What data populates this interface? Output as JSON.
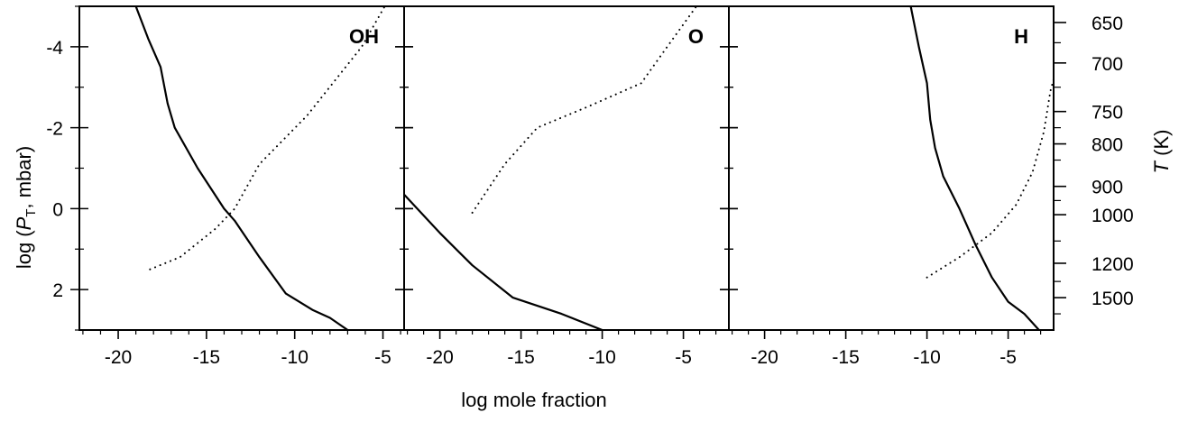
{
  "chart_data": {
    "type": "line",
    "xlabel": "log mole fraction",
    "ylabel": {
      "prefix": "log (",
      "var": "P",
      "sub": "T",
      "suffix": ", mbar)"
    },
    "right_axis_label": {
      "var": "T",
      "suffix": " (K)"
    },
    "ylim": [
      3,
      -5
    ],
    "y_ticks": [
      -4,
      -2,
      0,
      2
    ],
    "y_tick_labels": [
      "-4",
      "-2",
      "0",
      "2"
    ],
    "right_ticks": [
      {
        "p": -4.6,
        "label": "650"
      },
      {
        "p": -3.6,
        "label": "700"
      },
      {
        "p": -2.4,
        "label": "750"
      },
      {
        "p": -1.6,
        "label": "800"
      },
      {
        "p": -0.55,
        "label": "900"
      },
      {
        "p": 0.15,
        "label": "1000"
      },
      {
        "p": 1.35,
        "label": "1200"
      },
      {
        "p": 2.2,
        "label": "1500"
      }
    ],
    "right_minor_ticks": [
      -4.1,
      -3.0,
      -2.0,
      -1.2,
      -0.2,
      0.8,
      1.8,
      2.6
    ],
    "panels": [
      {
        "label": "OH",
        "xlim": [
          -22.2,
          -3.8
        ],
        "x_ticks": [
          -20,
          -15,
          -10,
          -5
        ],
        "x_tick_labels": [
          "-20",
          "-15",
          "-10",
          "-5"
        ],
        "series": [
          {
            "style": "solid",
            "points": [
              [
                -19,
                -5
              ],
              [
                -18.3,
                -4.2
              ],
              [
                -17.6,
                -3.5
              ],
              [
                -17.2,
                -2.6
              ],
              [
                -16.8,
                -2
              ],
              [
                -15.5,
                -1
              ],
              [
                -14,
                0
              ],
              [
                -13.4,
                0.3
              ],
              [
                -12,
                1.2
              ],
              [
                -10.5,
                2.1
              ],
              [
                -9,
                2.5
              ],
              [
                -8,
                2.7
              ],
              [
                -7,
                3
              ]
            ]
          },
          {
            "style": "dotted",
            "points": [
              [
                -18.2,
                1.5
              ],
              [
                -16.5,
                1.2
              ],
              [
                -14.5,
                0.5
              ],
              [
                -13.4,
                0
              ],
              [
                -12,
                -1.1
              ],
              [
                -9.3,
                -2.3
              ],
              [
                -6.2,
                -4
              ],
              [
                -4.9,
                -5
              ]
            ]
          }
        ]
      },
      {
        "label": "O",
        "xlim": [
          -22.2,
          -2.2
        ],
        "x_ticks": [
          -20,
          -15,
          -10,
          -5
        ],
        "x_tick_labels": [
          "-20",
          "-15",
          "-10",
          "-5"
        ],
        "series": [
          {
            "style": "solid",
            "points": [
              [
                -22.2,
                -0.35
              ],
              [
                -20,
                0.6
              ],
              [
                -18,
                1.4
              ],
              [
                -15.5,
                2.2
              ],
              [
                -12.5,
                2.6
              ],
              [
                -10,
                3
              ]
            ]
          },
          {
            "style": "dotted",
            "points": [
              [
                -18,
                0.1
              ],
              [
                -16,
                -1.1
              ],
              [
                -14,
                -2
              ],
              [
                -11,
                -2.5
              ],
              [
                -7.6,
                -3.1
              ],
              [
                -6,
                -4
              ],
              [
                -4.2,
                -5
              ]
            ]
          }
        ]
      },
      {
        "label": "H",
        "xlim": [
          -22.2,
          -2.2
        ],
        "x_ticks": [
          -20,
          -15,
          -10,
          -5
        ],
        "x_tick_labels": [
          "-20",
          "-15",
          "-10",
          "-5"
        ],
        "series": [
          {
            "style": "solid",
            "points": [
              [
                -11,
                -5
              ],
              [
                -10.5,
                -4
              ],
              [
                -10,
                -3.1
              ],
              [
                -9.8,
                -2.2
              ],
              [
                -9.5,
                -1.5
              ],
              [
                -9,
                -0.8
              ],
              [
                -8,
                0
              ],
              [
                -7,
                0.9
              ],
              [
                -6,
                1.7
              ],
              [
                -5,
                2.3
              ],
              [
                -4,
                2.6
              ],
              [
                -3.1,
                3
              ]
            ]
          },
          {
            "style": "dotted",
            "points": [
              [
                -10,
                1.7
              ],
              [
                -8,
                1.2
              ],
              [
                -6,
                0.6
              ],
              [
                -4.5,
                -0.1
              ],
              [
                -3.5,
                -0.9
              ],
              [
                -2.8,
                -1.9
              ],
              [
                -2.4,
                -2.9
              ],
              [
                -2.2,
                -3.2
              ]
            ]
          }
        ]
      }
    ]
  }
}
